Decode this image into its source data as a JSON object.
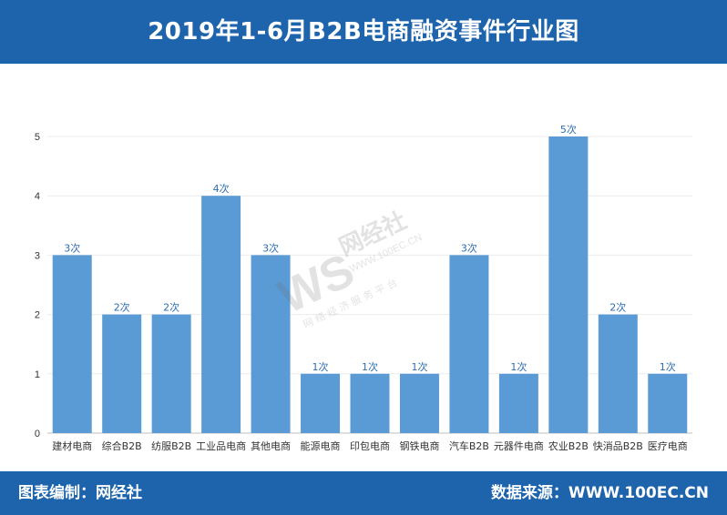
{
  "header": {
    "title": "2019年1-6月B2B电商融资事件行业图"
  },
  "footer": {
    "left": "图表编制：网经社",
    "right": "数据来源：WWW.100EC.CN"
  },
  "watermark": {
    "brand": "网经社",
    "url": "WWW.100EC.CN",
    "slogan": "网 络 经 济 服 务 平 台",
    "logo": "WS"
  },
  "colors": {
    "bar": "#5b9bd5",
    "label": "#2e6db0",
    "header": "#1d64ad"
  },
  "chart_data": {
    "type": "bar",
    "categories": [
      "建材电商",
      "综合B2B",
      "纺服B2B",
      "工业品电商",
      "其他电商",
      "能源电商",
      "印包电商",
      "钢铁电商",
      "汽车B2B",
      "元器件电商",
      "农业B2B",
      "快消品B2B",
      "医疗电商"
    ],
    "values": [
      3,
      2,
      2,
      4,
      3,
      1,
      1,
      1,
      3,
      1,
      5,
      2,
      1
    ],
    "data_labels": [
      "3次",
      "2次",
      "2次",
      "4次",
      "3次",
      "1次",
      "1次",
      "1次",
      "3次",
      "1次",
      "5次",
      "2次",
      "1次"
    ],
    "yticks": [
      "0",
      "1",
      "2",
      "3",
      "4",
      "5"
    ],
    "ylim": [
      0,
      5
    ],
    "grid": true
  }
}
